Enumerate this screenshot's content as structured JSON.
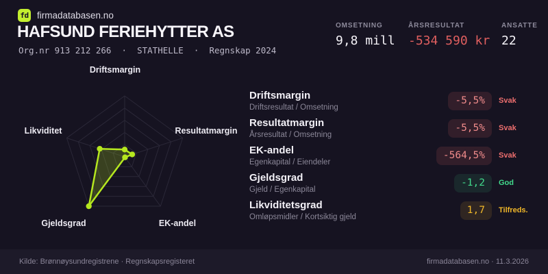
{
  "brand": {
    "logo_text": "fd",
    "site": "firmadatabasen.no",
    "lime": "#c3ee2f"
  },
  "header": {
    "company_name": "HAFSUND FERIEHYTTER AS",
    "org_line": "Org.nr 913 212 266  ·  STATHELLE  ·  Regnskap 2024",
    "stats": [
      {
        "label": "OMSETNING",
        "value": "9,8 mill",
        "color": "#f5f3f8"
      },
      {
        "label": "ÅRSRESULTAT",
        "value": "-534 590 kr",
        "color": "#e05f5f"
      },
      {
        "label": "ANSATTE",
        "value": "22",
        "color": "#f5f3f8"
      }
    ]
  },
  "chart_data": {
    "type": "radar",
    "indicators": [
      "Driftsmargin",
      "Resultatmargin",
      "EK-andel",
      "Gjeldsgrad",
      "Likviditet"
    ],
    "normalized_values": [
      0.12,
      0.13,
      0.01,
      1.0,
      0.43
    ],
    "metric_values": [
      "-5,5%",
      "-5,5%",
      "-564,5%",
      "-1,2",
      "1,7"
    ],
    "levels": 5,
    "series_color": "#b5e71f",
    "fill_opacity": 0.22,
    "grid_color": "#2b2838",
    "legend_position": "none"
  },
  "metrics": [
    {
      "name": "Driftsmargin",
      "formula": "Driftsresultat / Omsetning",
      "value": "-5,5%",
      "rating": "Svak",
      "status": "bad"
    },
    {
      "name": "Resultatmargin",
      "formula": "Årsresultat / Omsetning",
      "value": "-5,5%",
      "rating": "Svak",
      "status": "bad"
    },
    {
      "name": "EK-andel",
      "formula": "Egenkapital / Eiendeler",
      "value": "-564,5%",
      "rating": "Svak",
      "status": "bad"
    },
    {
      "name": "Gjeldsgrad",
      "formula": "Gjeld / Egenkapital",
      "value": "-1,2",
      "rating": "God",
      "status": "good"
    },
    {
      "name": "Likviditetsgrad",
      "formula": "Omløpsmidler / Kortsiktig gjeld",
      "value": "1,7",
      "rating": "Tilfreds.",
      "status": "ok"
    }
  ],
  "footer": {
    "left": "Kilde: Brønnøysundregistrene · Regnskapsregisteret",
    "right": "firmadatabasen.no · 11.3.2026"
  }
}
